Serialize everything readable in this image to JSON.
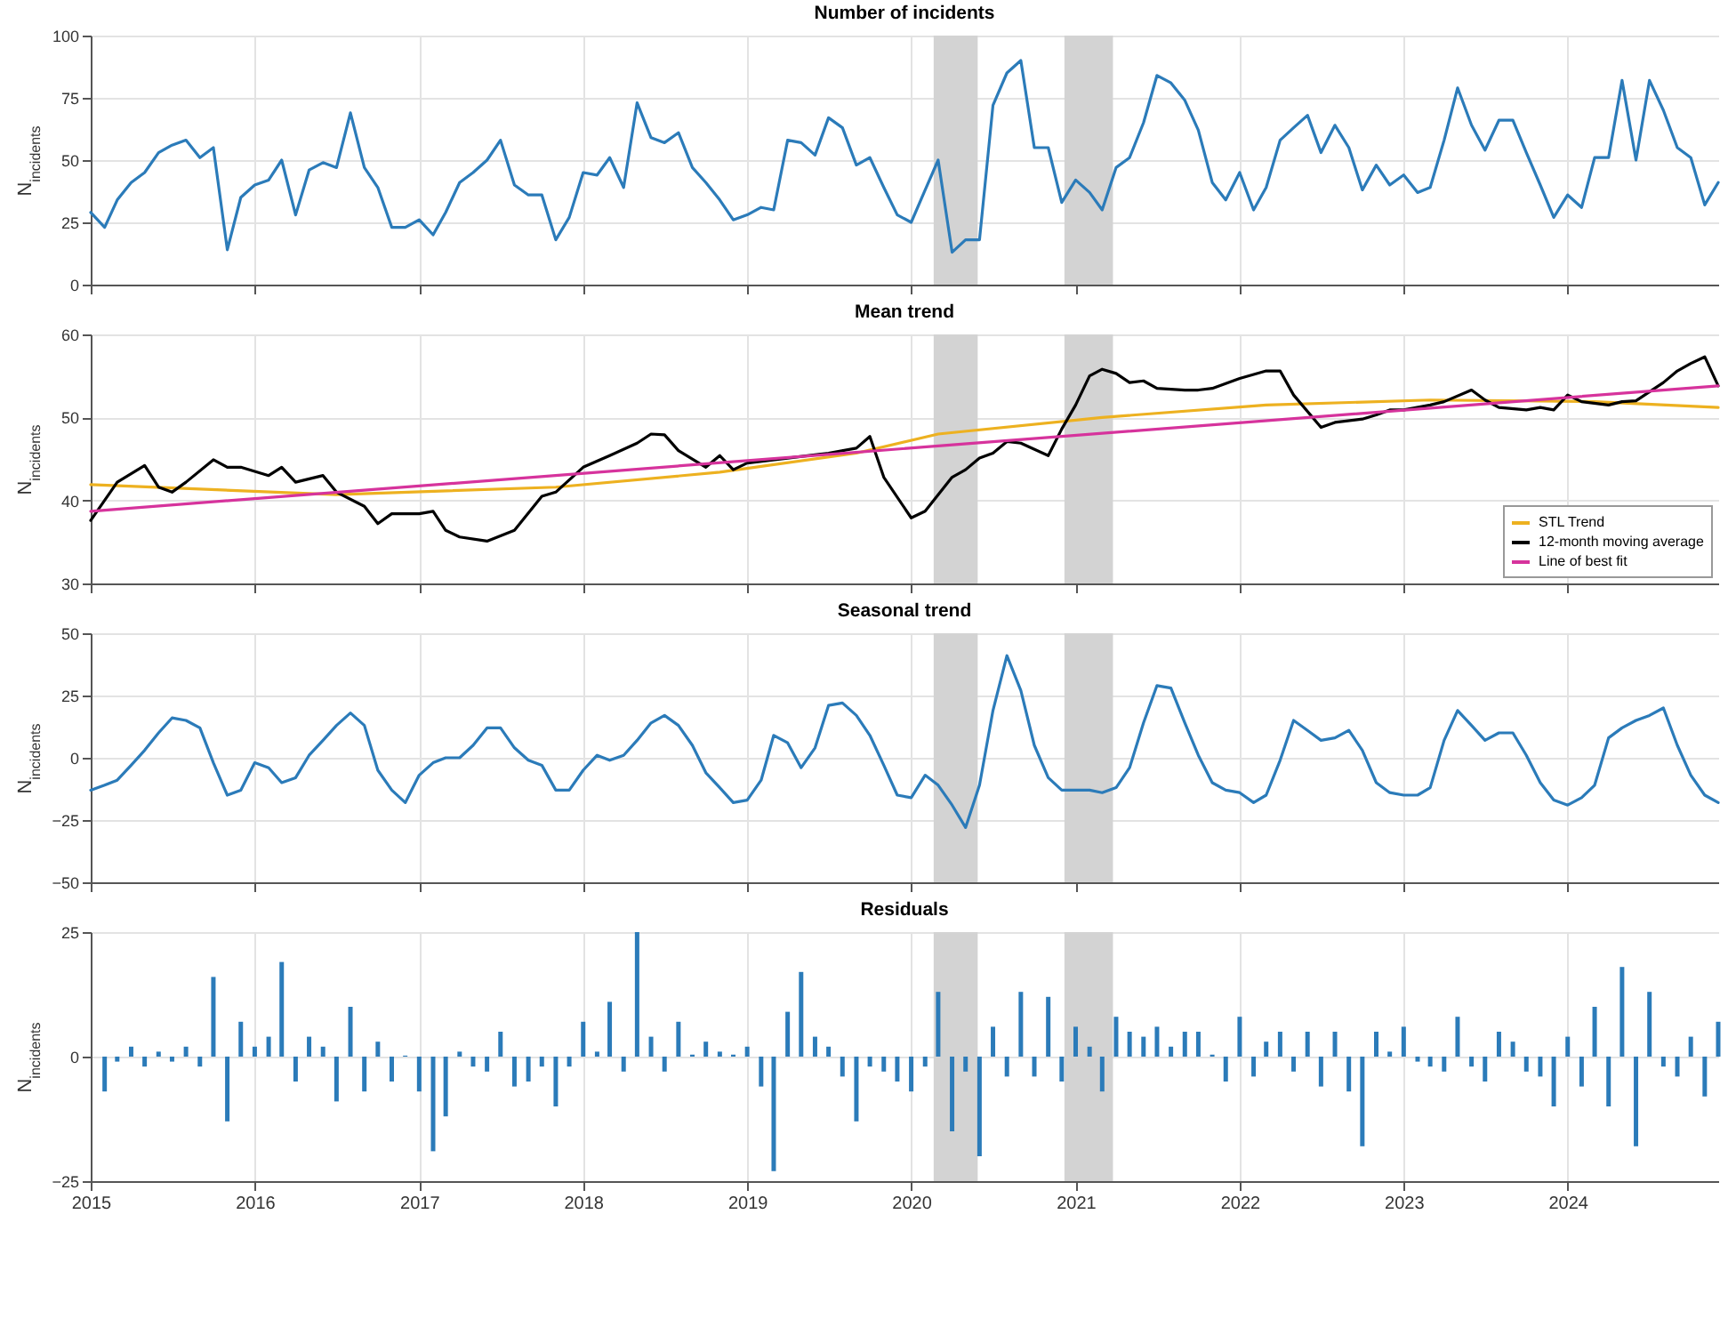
{
  "chart_data": [
    {
      "type": "line",
      "title": "Number of incidents",
      "ylabel": "N$_{incidents}$",
      "x": [
        "2015-01",
        "2015-02",
        "2015-03",
        "2015-04",
        "2015-05",
        "2015-06",
        "2015-07",
        "2015-08",
        "2015-09",
        "2015-10",
        "2015-11",
        "2015-12",
        "2016-01",
        "2016-02",
        "2016-03",
        "2016-04",
        "2016-05",
        "2016-06",
        "2016-07",
        "2016-08",
        "2016-09",
        "2016-10",
        "2016-11",
        "2016-12",
        "2017-01",
        "2017-02",
        "2017-03",
        "2017-04",
        "2017-05",
        "2017-06",
        "2017-07",
        "2017-08",
        "2017-09",
        "2017-10",
        "2017-11",
        "2017-12",
        "2018-01",
        "2018-02",
        "2018-03",
        "2018-04",
        "2018-05",
        "2018-06",
        "2018-07",
        "2018-08",
        "2018-09",
        "2018-10",
        "2018-11",
        "2018-12",
        "2019-01",
        "2019-02",
        "2019-03",
        "2019-04",
        "2019-05",
        "2019-06",
        "2019-07",
        "2019-08",
        "2019-09",
        "2019-10",
        "2019-11",
        "2019-12",
        "2020-01",
        "2020-02",
        "2020-03",
        "2020-04",
        "2020-05",
        "2020-06",
        "2020-07",
        "2020-08",
        "2020-09",
        "2020-10",
        "2020-11",
        "2020-12",
        "2021-01",
        "2021-02",
        "2021-03",
        "2021-04",
        "2021-05",
        "2021-06",
        "2021-07",
        "2021-08",
        "2021-09",
        "2021-10",
        "2021-11",
        "2021-12",
        "2022-01",
        "2022-02",
        "2022-03",
        "2022-04",
        "2022-05",
        "2022-06",
        "2022-07",
        "2022-08",
        "2022-09",
        "2022-10",
        "2022-11",
        "2022-12",
        "2023-01",
        "2023-02",
        "2023-03",
        "2023-04",
        "2023-05",
        "2023-06",
        "2023-07",
        "2023-08",
        "2023-09",
        "2023-10",
        "2023-11",
        "2023-12",
        "2024-01",
        "2024-02",
        "2024-03",
        "2024-04",
        "2024-05",
        "2024-06",
        "2024-07",
        "2024-08",
        "2024-09",
        "2024-10",
        "2024-11",
        "2024-12"
      ],
      "series": [
        {
          "color": "#2b7bb9",
          "values": [
            29,
            23,
            34,
            41,
            45,
            53,
            56,
            58,
            51,
            55,
            14,
            35,
            40,
            42,
            50,
            28,
            46,
            49,
            47,
            69,
            47,
            39,
            23,
            23,
            26,
            20,
            29,
            41,
            45,
            50,
            58,
            40,
            36,
            36,
            18,
            27,
            45,
            44,
            51,
            39,
            73,
            59,
            57,
            61,
            47,
            41,
            34,
            26,
            28,
            31,
            30,
            58,
            57,
            52,
            67,
            63,
            48,
            51,
            39,
            28,
            25,
            38,
            50,
            13,
            18,
            18,
            72,
            85,
            90,
            55,
            55,
            33,
            42,
            37,
            30,
            47,
            51,
            65,
            84,
            81,
            74,
            62,
            41,
            34,
            45,
            30,
            39,
            58,
            63,
            68,
            53,
            64,
            55,
            38,
            48,
            40,
            44,
            37,
            39,
            58,
            79,
            64,
            54,
            66,
            66,
            53,
            40,
            27,
            36,
            31,
            51,
            51,
            82,
            50,
            82,
            70,
            55,
            51,
            32,
            41
          ]
        }
      ],
      "xlim": [
        "2015-01",
        "2024-12"
      ],
      "xticks": [
        "2015",
        "2016",
        "2017",
        "2018",
        "2019",
        "2020",
        "2021",
        "2022",
        "2023",
        "2024"
      ],
      "ylim": [
        0,
        100
      ],
      "yticks": [
        0,
        25,
        50,
        75,
        100
      ],
      "grid": true,
      "tick_labels": "y",
      "bands": [
        {
          "axis": "x",
          "from": "2020-02-20",
          "to": "2020-05-28",
          "color": "#d3d3d3"
        },
        {
          "axis": "x",
          "from": "2020-12-07",
          "to": "2021-03-25",
          "color": "#d3d3d3"
        }
      ]
    },
    {
      "type": "line",
      "title": "Mean trend",
      "ylabel": "N$_{incidents}$",
      "series": [
        {
          "name": "STL Trend",
          "color": "#edb120",
          "x": [
            "2015-01",
            "2016-07",
            "2017-11",
            "2018-11",
            "2019-09",
            "2020-03",
            "2021-03",
            "2022-03",
            "2023-03",
            "2024-03",
            "2024-12"
          ],
          "values": [
            41.9,
            40.7,
            41.6,
            43.4,
            45.7,
            48,
            50,
            51.5,
            52.1,
            51.9,
            51.2
          ]
        },
        {
          "name": "12-month moving average",
          "color": "#000000",
          "x": [
            "2015-01",
            "2015-03",
            "2015-05",
            "2015-06",
            "2015-07",
            "2015-08",
            "2015-10",
            "2015-11",
            "2015-12",
            "2016-02",
            "2016-03",
            "2016-04",
            "2016-06",
            "2016-07",
            "2016-09",
            "2016-10",
            "2016-11",
            "2017-01",
            "2017-02",
            "2017-03",
            "2017-04",
            "2017-06",
            "2017-08",
            "2017-10",
            "2017-11",
            "2018-01",
            "2018-03",
            "2018-05",
            "2018-06",
            "2018-07",
            "2018-08",
            "2018-10",
            "2018-11",
            "2018-12",
            "2019-01",
            "2019-04",
            "2019-07",
            "2019-09",
            "2019-10",
            "2019-11",
            "2020-01",
            "2020-02",
            "2020-04",
            "2020-05",
            "2020-06",
            "2020-07",
            "2020-08",
            "2020-09",
            "2020-11",
            "2020-12",
            "2021-01",
            "2021-02",
            "2021-03",
            "2021-04",
            "2021-05",
            "2021-06",
            "2021-07",
            "2021-09",
            "2021-10",
            "2021-11",
            "2022-01",
            "2022-03",
            "2022-04",
            "2022-05",
            "2022-07",
            "2022-08",
            "2022-10",
            "2022-11",
            "2022-12",
            "2023-01",
            "2023-03",
            "2023-04",
            "2023-06",
            "2023-07",
            "2023-08",
            "2023-10",
            "2023-11",
            "2023-12",
            "2024-01",
            "2024-02",
            "2024-04",
            "2024-05",
            "2024-06",
            "2024-08",
            "2024-09",
            "2024-10",
            "2024-11",
            "2024-12"
          ],
          "values": [
            37.6,
            42.2,
            44.2,
            41.6,
            41,
            42.2,
            44.9,
            44,
            44,
            43,
            44,
            42.2,
            43,
            41,
            39.3,
            37.2,
            38.4,
            38.4,
            38.7,
            36.4,
            35.6,
            35.1,
            36.4,
            40.5,
            41,
            44,
            45.4,
            46.9,
            48,
            47.9,
            46,
            44,
            45.4,
            43.7,
            44.5,
            45.1,
            45.7,
            46.3,
            47.7,
            42.8,
            37.9,
            38.7,
            42.8,
            43.7,
            45.1,
            45.7,
            47.1,
            46.9,
            45.4,
            48.6,
            51.5,
            55,
            55.8,
            55.3,
            54.2,
            54.4,
            53.5,
            53.3,
            53.3,
            53.5,
            54.7,
            55.6,
            55.6,
            52.7,
            48.8,
            49.4,
            49.8,
            50.3,
            50.9,
            50.9,
            51.5,
            51.9,
            53.3,
            52.1,
            51.2,
            50.9,
            51.2,
            50.9,
            52.7,
            51.9,
            51.5,
            51.9,
            52,
            54.2,
            55.6,
            56.5,
            57.3,
            53.8
          ]
        },
        {
          "name": "Line of best fit",
          "color": "#d6339c",
          "x": [
            "2015-01",
            "2024-12"
          ],
          "values": [
            38.7,
            53.8
          ]
        }
      ],
      "xlim": [
        "2015-01",
        "2024-12"
      ],
      "xticks": [
        "2015",
        "2016",
        "2017",
        "2018",
        "2019",
        "2020",
        "2021",
        "2022",
        "2023",
        "2024"
      ],
      "ylim": [
        30,
        60
      ],
      "yticks": [
        30,
        40,
        50,
        60
      ],
      "grid": true,
      "tick_labels": "y",
      "legend": "bottom right",
      "bands": [
        {
          "axis": "x",
          "from": "2020-02-20",
          "to": "2020-05-28",
          "color": "#d3d3d3"
        },
        {
          "axis": "x",
          "from": "2020-12-07",
          "to": "2021-03-25",
          "color": "#d3d3d3"
        }
      ]
    },
    {
      "type": "line",
      "title": "Seasonal trend",
      "ylabel": "N$_{incidents}$",
      "x": [
        "2015-01",
        "2015-02",
        "2015-03",
        "2015-04",
        "2015-05",
        "2015-06",
        "2015-07",
        "2015-08",
        "2015-09",
        "2015-10",
        "2015-11",
        "2015-12",
        "2016-01",
        "2016-02",
        "2016-03",
        "2016-04",
        "2016-05",
        "2016-06",
        "2016-07",
        "2016-08",
        "2016-09",
        "2016-10",
        "2016-11",
        "2016-12",
        "2017-01",
        "2017-02",
        "2017-03",
        "2017-04",
        "2017-05",
        "2017-06",
        "2017-07",
        "2017-08",
        "2017-09",
        "2017-10",
        "2017-11",
        "2017-12",
        "2018-01",
        "2018-02",
        "2018-03",
        "2018-04",
        "2018-05",
        "2018-06",
        "2018-07",
        "2018-08",
        "2018-09",
        "2018-10",
        "2018-11",
        "2018-12",
        "2019-01",
        "2019-02",
        "2019-03",
        "2019-04",
        "2019-05",
        "2019-06",
        "2019-07",
        "2019-08",
        "2019-09",
        "2019-10",
        "2019-11",
        "2019-12",
        "2020-01",
        "2020-02",
        "2020-03",
        "2020-04",
        "2020-05",
        "2020-06",
        "2020-07",
        "2020-08",
        "2020-09",
        "2020-10",
        "2020-11",
        "2020-12",
        "2021-01",
        "2021-02",
        "2021-03",
        "2021-04",
        "2021-05",
        "2021-06",
        "2021-07",
        "2021-08",
        "2021-09",
        "2021-10",
        "2021-11",
        "2021-12",
        "2022-01",
        "2022-02",
        "2022-03",
        "2022-04",
        "2022-05",
        "2022-06",
        "2022-07",
        "2022-08",
        "2022-09",
        "2022-10",
        "2022-11",
        "2022-12",
        "2023-01",
        "2023-02",
        "2023-03",
        "2023-04",
        "2023-05",
        "2023-06",
        "2023-07",
        "2023-08",
        "2023-09",
        "2023-10",
        "2023-11",
        "2023-12",
        "2024-01",
        "2024-02",
        "2024-03",
        "2024-04",
        "2024-05",
        "2024-06",
        "2024-07",
        "2024-08",
        "2024-09",
        "2024-10",
        "2024-11",
        "2024-12"
      ],
      "series": [
        {
          "color": "#2b7bb9",
          "values": [
            -13,
            -11,
            -9,
            -3,
            3,
            10,
            16,
            15,
            12,
            -2,
            -15,
            -13,
            -2,
            -4,
            -10,
            -8,
            1,
            7,
            13,
            18,
            13,
            -5,
            -13,
            -18,
            -7,
            -2,
            0,
            0,
            5,
            12,
            12,
            4,
            -1,
            -3,
            -13,
            -13,
            -5,
            1,
            -1,
            1,
            7,
            14,
            17,
            13,
            5,
            -6,
            -12,
            -18,
            -17,
            -9,
            9,
            6,
            -4,
            4,
            21,
            22,
            17,
            9,
            -3,
            -15,
            -16,
            -7,
            -11,
            -19,
            -28,
            -11,
            19,
            41,
            27,
            5,
            -8,
            -13,
            -13,
            -13,
            -14,
            -12,
            -4,
            14,
            29,
            28,
            14,
            1,
            -10,
            -13,
            -14,
            -18,
            -15,
            -1,
            15,
            11,
            7,
            8,
            11,
            3,
            -10,
            -14,
            -15,
            -15,
            -12,
            7,
            19,
            13,
            7,
            10,
            10,
            1,
            -10,
            -17,
            -19,
            -16,
            -11,
            8,
            12,
            15,
            17,
            20,
            5,
            -7,
            -15,
            -18
          ]
        }
      ],
      "xlim": [
        "2015-01",
        "2024-12"
      ],
      "xticks": [
        "2015",
        "2016",
        "2017",
        "2018",
        "2019",
        "2020",
        "2021",
        "2022",
        "2023",
        "2024"
      ],
      "ylim": [
        -50,
        50
      ],
      "yticks": [
        -50,
        -25,
        0,
        25,
        50
      ],
      "grid": true,
      "tick_labels": "y",
      "bands": [
        {
          "axis": "x",
          "from": "2020-02-20",
          "to": "2020-05-28",
          "color": "#d3d3d3"
        },
        {
          "axis": "x",
          "from": "2020-12-07",
          "to": "2021-03-25",
          "color": "#d3d3d3"
        }
      ]
    },
    {
      "type": "bar",
      "title": "Residuals",
      "ylabel": "N$_{incidents}$",
      "x": [
        "2015-02",
        "2015-03",
        "2015-04",
        "2015-05",
        "2015-06",
        "2015-07",
        "2015-08",
        "2015-09",
        "2015-10",
        "2015-11",
        "2015-12",
        "2016-01",
        "2016-02",
        "2016-03",
        "2016-04",
        "2016-05",
        "2016-06",
        "2016-07",
        "2016-08",
        "2016-09",
        "2016-10",
        "2016-11",
        "2016-12",
        "2017-01",
        "2017-02",
        "2017-03",
        "2017-04",
        "2017-05",
        "2017-06",
        "2017-07",
        "2017-08",
        "2017-09",
        "2017-10",
        "2017-11",
        "2017-12",
        "2018-01",
        "2018-02",
        "2018-03",
        "2018-04",
        "2018-05",
        "2018-06",
        "2018-07",
        "2018-08",
        "2018-09",
        "2018-10",
        "2018-11",
        "2018-12",
        "2019-01",
        "2019-02",
        "2019-03",
        "2019-04",
        "2019-05",
        "2019-06",
        "2019-07",
        "2019-08",
        "2019-09",
        "2019-10",
        "2019-11",
        "2019-12",
        "2020-01",
        "2020-02",
        "2020-03",
        "2020-04",
        "2020-05",
        "2020-06",
        "2020-07",
        "2020-08",
        "2020-09",
        "2020-10",
        "2020-11",
        "2020-12",
        "2021-01",
        "2021-02",
        "2021-03",
        "2021-04",
        "2021-05",
        "2021-06",
        "2021-07",
        "2021-08",
        "2021-09",
        "2021-10",
        "2021-11",
        "2021-12",
        "2022-01",
        "2022-02",
        "2022-03",
        "2022-04",
        "2022-05",
        "2022-06",
        "2022-07",
        "2022-08",
        "2022-09",
        "2022-10",
        "2022-11",
        "2022-12",
        "2023-01",
        "2023-02",
        "2023-03",
        "2023-04",
        "2023-05",
        "2023-06",
        "2023-07",
        "2023-08",
        "2023-09",
        "2023-10",
        "2023-11",
        "2023-12",
        "2024-01",
        "2024-02",
        "2024-03",
        "2024-04",
        "2024-05",
        "2024-06",
        "2024-07",
        "2024-08",
        "2024-09",
        "2024-10",
        "2024-11",
        "2024-12"
      ],
      "series": [
        {
          "color": "#2b7bb9",
          "values": [
            -7,
            -1,
            2,
            -2,
            1,
            -1,
            2,
            -2,
            16,
            -13,
            7,
            2,
            4,
            19,
            -5,
            4,
            2,
            -9,
            10,
            -7,
            3,
            -5,
            0.2,
            -7,
            -19,
            -12,
            1,
            -2,
            -3,
            5,
            -6,
            -5,
            -2,
            -10,
            -2,
            7,
            1,
            11,
            -3,
            25,
            4,
            -3,
            7,
            0.4,
            3,
            1,
            0.4,
            2,
            -6,
            -23,
            9,
            17,
            4,
            2,
            -4,
            -13,
            -2,
            -3,
            -5,
            -7,
            -2,
            13,
            -15,
            -3,
            -20,
            6,
            -4,
            13,
            -4,
            12,
            -5,
            6,
            2,
            -7,
            8,
            5,
            4,
            6,
            2,
            5,
            5,
            0.4,
            -5,
            8,
            -4,
            3,
            5,
            -3,
            5,
            -6,
            5,
            -7,
            -18,
            5,
            1,
            6,
            -1,
            -2,
            -3,
            8,
            -2,
            -5,
            5,
            3,
            -3,
            -4,
            -10,
            4,
            -6,
            10,
            -10,
            18,
            -18,
            13,
            -2,
            -4,
            4,
            -8,
            7
          ]
        }
      ],
      "xlim": [
        "2015-01",
        "2024-12"
      ],
      "xticks": [
        "2015",
        "2016",
        "2017",
        "2018",
        "2019",
        "2020",
        "2021",
        "2022",
        "2023",
        "2024"
      ],
      "ylim": [
        -25,
        25
      ],
      "yticks": [
        -25,
        0,
        25
      ],
      "grid": true,
      "bands": [
        {
          "axis": "x",
          "from": "2020-02-20",
          "to": "2020-05-28",
          "color": "#d3d3d3"
        },
        {
          "axis": "x",
          "from": "2020-12-07",
          "to": "2021-03-25",
          "color": "#d3d3d3"
        }
      ]
    }
  ]
}
